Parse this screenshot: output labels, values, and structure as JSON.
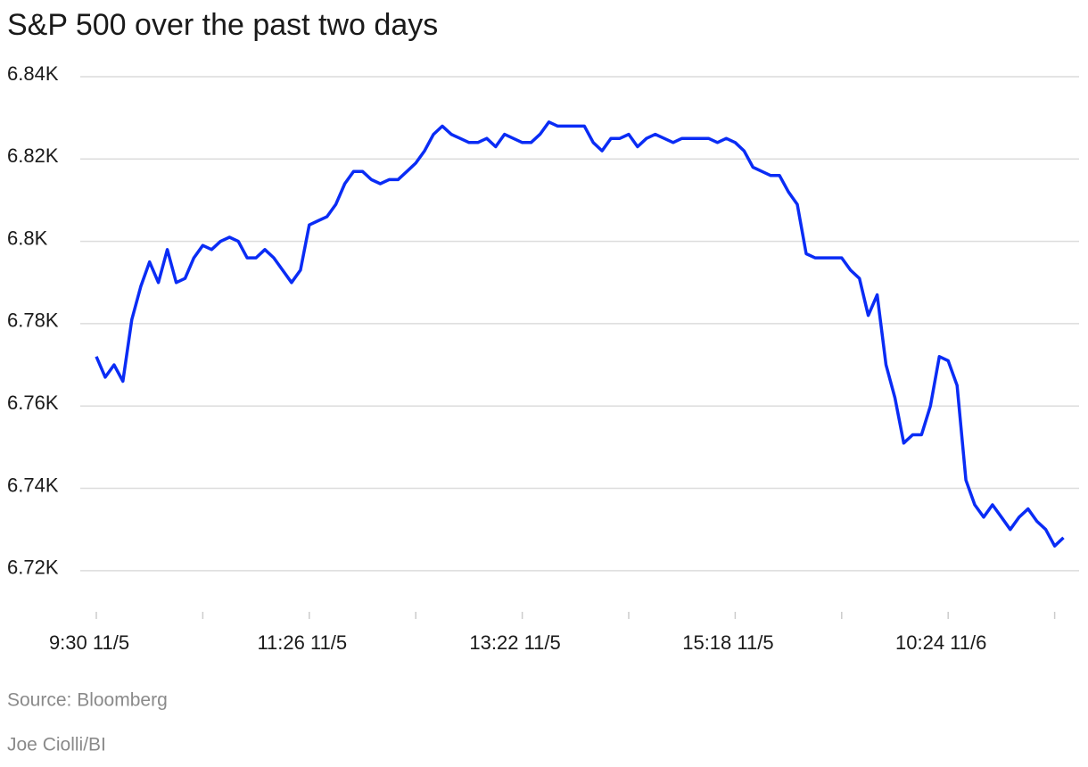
{
  "chart_data": {
    "type": "line",
    "title": "S&P 500 over the past two days",
    "source": "Source: Bloomberg",
    "credit": "Joe Ciolli/BI",
    "categories": [
      "9:30 11/5",
      null,
      null,
      null,
      null,
      null,
      null,
      null,
      null,
      null,
      null,
      null,
      null,
      null,
      null,
      null,
      null,
      null,
      null,
      null,
      null,
      null,
      null,
      null,
      "11:26 11/5",
      null,
      null,
      null,
      null,
      null,
      null,
      null,
      null,
      null,
      null,
      null,
      null,
      null,
      null,
      null,
      null,
      null,
      null,
      null,
      null,
      null,
      null,
      null,
      "13:22 11/5",
      null,
      null,
      null,
      null,
      null,
      null,
      null,
      null,
      null,
      null,
      null,
      null,
      null,
      null,
      null,
      null,
      null,
      null,
      null,
      null,
      null,
      null,
      null,
      "15:18 11/5",
      null,
      null,
      null,
      null,
      null,
      null,
      null,
      null,
      null,
      null,
      null,
      null,
      null,
      null,
      null,
      null,
      null,
      null,
      null,
      null,
      null,
      null,
      null,
      "10:24 11/6",
      null,
      null,
      null,
      null,
      null,
      null,
      null,
      null,
      null,
      null,
      null,
      null,
      null
    ],
    "series": [
      {
        "name": "S&P 500",
        "color": "#0a2cf5",
        "values": [
          6.772,
          6.767,
          6.77,
          6.766,
          6.781,
          6.789,
          6.795,
          6.79,
          6.798,
          6.79,
          6.791,
          6.796,
          6.799,
          6.798,
          6.8,
          6.801,
          6.8,
          6.796,
          6.796,
          6.798,
          6.796,
          6.793,
          6.79,
          6.793,
          6.804,
          6.805,
          6.806,
          6.809,
          6.814,
          6.817,
          6.817,
          6.815,
          6.814,
          6.815,
          6.815,
          6.817,
          6.819,
          6.822,
          6.826,
          6.828,
          6.826,
          6.825,
          6.824,
          6.824,
          6.825,
          6.823,
          6.826,
          6.825,
          6.824,
          6.824,
          6.826,
          6.829,
          6.828,
          6.828,
          6.828,
          6.828,
          6.824,
          6.822,
          6.825,
          6.825,
          6.826,
          6.823,
          6.825,
          6.826,
          6.825,
          6.824,
          6.825,
          6.825,
          6.825,
          6.825,
          6.824,
          6.825,
          6.824,
          6.822,
          6.818,
          6.817,
          6.816,
          6.816,
          6.812,
          6.809,
          6.797,
          6.796,
          6.796,
          6.796,
          6.796,
          6.793,
          6.791,
          6.782,
          6.787,
          6.77,
          6.762,
          6.751,
          6.753,
          6.753,
          6.76,
          6.772,
          6.771,
          6.765,
          6.742,
          6.736,
          6.733,
          6.736,
          6.733,
          6.73,
          6.733,
          6.735,
          6.732,
          6.73,
          6.726,
          6.728
        ]
      }
    ],
    "ylim": [
      6.71,
      6.84
    ],
    "yticks": [
      {
        "value": 6.72,
        "label": "6.72K"
      },
      {
        "value": 6.74,
        "label": "6.74K"
      },
      {
        "value": 6.76,
        "label": "6.76K"
      },
      {
        "value": 6.78,
        "label": "6.78K"
      },
      {
        "value": 6.8,
        "label": "6.8K"
      },
      {
        "value": 6.82,
        "label": "6.82K"
      },
      {
        "value": 6.84,
        "label": "6.84K"
      }
    ],
    "grid": true
  }
}
